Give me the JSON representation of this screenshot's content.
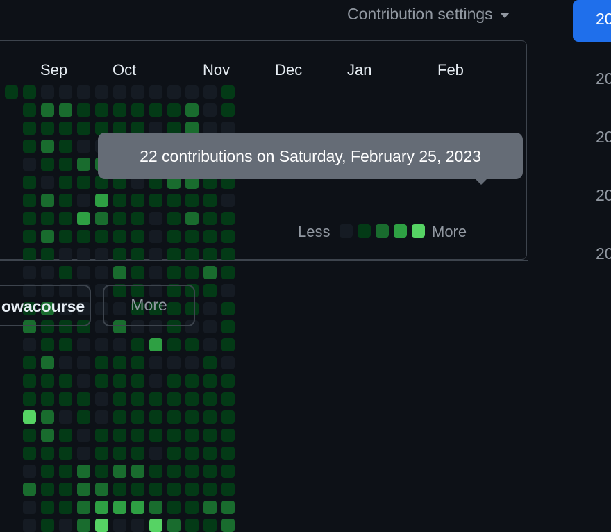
{
  "header": {
    "settings_label": "Contribution settings"
  },
  "years": [
    "20",
    "20",
    "20",
    "20",
    "20"
  ],
  "graph": {
    "months": [
      "Sep",
      "Oct",
      "Nov",
      "Dec",
      "Jan",
      "Feb"
    ],
    "levels": [
      "1000000000000000000000000",
      "1111011111001201114110200",
      "0212102121002112112211111",
      "0211111110100110110111110",
      "0110210310000100011002222",
      "0110213210000001100111234",
      "0111111111210201111112130",
      "0111101111111011111112130",
      "0101111000001030011101124",
      "0111121111111110111111112",
      "0221121211111010111111111",
      "0000111111210001111111121",
      "1101110111101110111111122"
    ],
    "level_colors": [
      "#151b23",
      "#033a16",
      "#196c2e",
      "#2ea043",
      "#56d364"
    ],
    "tooltip": "22 contributions on Saturday, February 25, 2023",
    "legend_less": "Less",
    "legend_more": "More"
  },
  "buttons": {
    "org_label": "owacourse",
    "more_label": "More"
  }
}
